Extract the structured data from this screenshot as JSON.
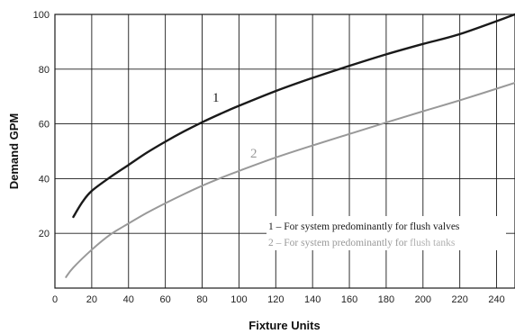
{
  "chart_data": {
    "type": "line",
    "title": "",
    "xlabel": "Fixture Units",
    "ylabel": "Demand GPM",
    "xlim": [
      0,
      250
    ],
    "ylim": [
      0,
      100
    ],
    "xticks": [
      0,
      20,
      40,
      60,
      80,
      100,
      120,
      140,
      160,
      180,
      200,
      220,
      240
    ],
    "yticks": [
      20,
      40,
      60,
      80,
      100
    ],
    "grid": true,
    "colors": {
      "series1": "#1a1a1a",
      "series2": "#999999",
      "grid": "#1a1a1a"
    },
    "series": [
      {
        "name": "1",
        "x": [
          10,
          15,
          20,
          30,
          40,
          50,
          60,
          70,
          80,
          90,
          100,
          120,
          140,
          160,
          180,
          200,
          220,
          250
        ],
        "y": [
          26,
          31.5,
          35.5,
          40.5,
          45,
          49.5,
          53.5,
          57.2,
          60.6,
          63.7,
          66.6,
          72,
          76.8,
          81.2,
          85.4,
          89.2,
          92.8,
          100
        ]
      },
      {
        "name": "2",
        "x": [
          6,
          10,
          20,
          30,
          40,
          50,
          60,
          70,
          80,
          90,
          100,
          120,
          140,
          160,
          180,
          200,
          220,
          250
        ],
        "y": [
          4,
          7.5,
          14,
          19.5,
          23.6,
          27.5,
          31,
          34.3,
          37.4,
          40.2,
          42.8,
          47.7,
          52.1,
          56.3,
          60.5,
          64.6,
          68.6,
          75
        ]
      }
    ],
    "legend": {
      "placement": "bottom-right",
      "items": [
        {
          "prefix": "1 – For system predominantly for ",
          "highlight": "flush valves"
        },
        {
          "prefix": "2 – For system predominantly for ",
          "highlight": "flush tanks"
        }
      ]
    }
  }
}
